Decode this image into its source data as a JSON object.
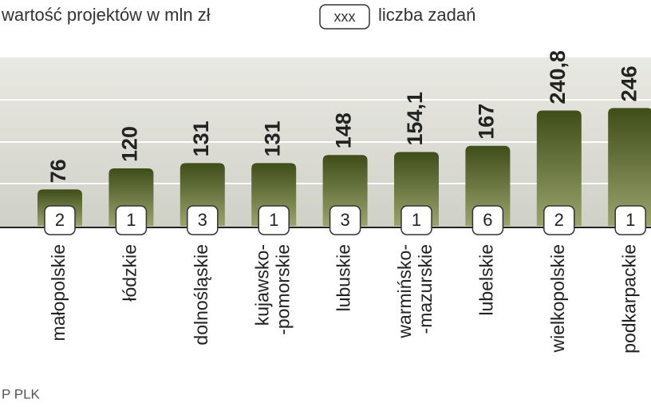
{
  "legend": {
    "value": "wartość projektów w mln zł",
    "badge": "xxx",
    "count": "liczba zadań"
  },
  "source": "P PLK",
  "chart_data": {
    "type": "bar",
    "categories": [
      [
        "małopolskie"
      ],
      [
        "łódzkie"
      ],
      [
        "dolnośląskie"
      ],
      [
        "kujawsko-",
        "-pomorskie"
      ],
      [
        "lubuskie"
      ],
      [
        "warmińsko-",
        "-mazurskie"
      ],
      [
        "lubelskie"
      ],
      [
        "wielkopolskie"
      ],
      [
        "podkarpackie"
      ]
    ],
    "values": [
      76,
      120,
      131,
      131,
      148,
      154.1,
      167,
      240.8,
      246
    ],
    "value_labels": [
      "76",
      "120",
      "131",
      "131",
      "148",
      "154,1",
      "167",
      "240,8",
      "246"
    ],
    "counts": [
      2,
      1,
      3,
      1,
      3,
      1,
      6,
      2,
      1
    ],
    "color": "#56662a"
  }
}
